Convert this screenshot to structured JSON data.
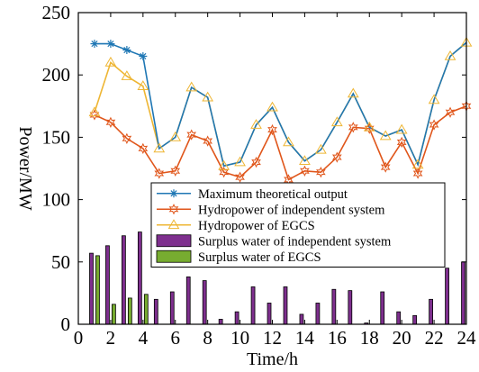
{
  "chart_data": {
    "type": "bar+line",
    "xlabel": "Time/h",
    "ylabel": "Power/MW",
    "xlim": [
      0,
      24
    ],
    "ylim": [
      0,
      250
    ],
    "xticks": [
      0,
      2,
      4,
      6,
      8,
      10,
      12,
      14,
      16,
      18,
      20,
      22,
      24
    ],
    "yticks": [
      0,
      50,
      100,
      150,
      200,
      250
    ],
    "legend_position": "center",
    "x": [
      1,
      2,
      3,
      4,
      5,
      6,
      7,
      8,
      9,
      10,
      11,
      12,
      13,
      14,
      15,
      16,
      17,
      18,
      19,
      20,
      21,
      22,
      23,
      24
    ],
    "line_series": [
      {
        "name": "Maximum theoretical output",
        "color": "#1f77b4",
        "marker": "asterisk",
        "values": [
          225,
          225,
          220,
          215,
          141,
          150,
          190,
          182,
          127,
          130,
          160,
          174,
          146,
          131,
          140,
          162,
          185,
          158,
          151,
          156,
          128,
          180,
          215,
          226
        ]
      },
      {
        "name": "Hydropower of independent system",
        "color": "#e0561b",
        "marker": "hexagram",
        "values": [
          168,
          162,
          149,
          141,
          121,
          123,
          152,
          147,
          122,
          118,
          130,
          156,
          116,
          123,
          122,
          134,
          158,
          157,
          126,
          146,
          121,
          160,
          170,
          175
        ]
      },
      {
        "name": "Hydropower of EGCS",
        "color": "#eeb634",
        "marker": "triangle",
        "values": [
          170,
          210,
          199,
          191,
          141,
          150,
          190,
          182,
          127,
          130,
          160,
          174,
          146,
          131,
          140,
          162,
          185,
          158,
          151,
          156,
          128,
          180,
          215,
          226
        ]
      }
    ],
    "bar_series": [
      {
        "name": "Surplus water of independent system",
        "color": "#7e2f8e",
        "values": [
          57,
          63,
          71,
          74,
          20,
          26,
          38,
          35,
          4,
          10,
          30,
          17,
          30,
          8,
          17,
          28,
          27,
          1,
          26,
          10,
          7,
          20,
          45,
          50
        ]
      },
      {
        "name": "Surplus water of EGCS",
        "color": "#77ac30",
        "values": [
          55,
          16,
          21,
          24,
          0,
          0,
          0,
          0,
          0,
          0,
          0,
          0,
          0,
          0,
          0,
          0,
          0,
          0,
          0,
          0,
          0,
          0,
          0,
          0
        ]
      }
    ]
  }
}
